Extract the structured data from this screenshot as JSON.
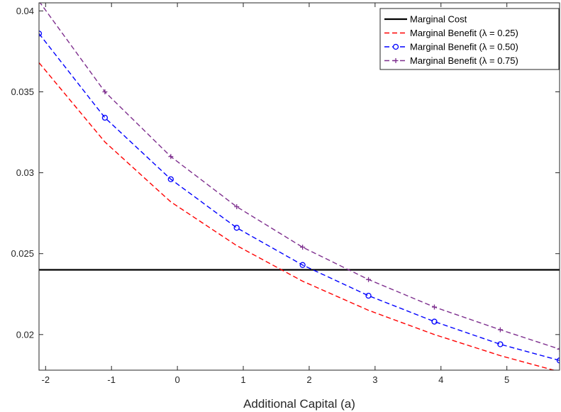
{
  "chart_data": {
    "type": "line",
    "title": "",
    "xlabel": "Additional Capital (a)",
    "ylabel": "",
    "xlim": [
      -2.1,
      5.8
    ],
    "ylim": [
      0.0178,
      0.0405
    ],
    "grid": false,
    "legend_position": "top-right",
    "x_ticks": [
      -2,
      -1,
      0,
      1,
      2,
      3,
      4,
      5
    ],
    "x_tick_labels": [
      "-2",
      "-1",
      "0",
      "1",
      "2",
      "3",
      "4",
      "5"
    ],
    "y_ticks": [
      0.02,
      0.025,
      0.03,
      0.035,
      0.04
    ],
    "y_tick_labels": [
      "0.02",
      "0.025",
      "0.03",
      "0.035",
      "0.04"
    ],
    "series": [
      {
        "name": "Marginal Cost",
        "color": "#000000",
        "style": "solid",
        "marker": "none",
        "x": [
          -2.1,
          5.8
        ],
        "values": [
          0.024,
          0.024
        ]
      },
      {
        "name": "Marginal Benefit (λ = 0.25)",
        "color": "#ff0000",
        "style": "dashed",
        "marker": "none",
        "x": [
          -2.1,
          -1.1,
          -0.1,
          0.9,
          1.9,
          2.9,
          3.9,
          4.9,
          5.8
        ],
        "values": [
          0.0368,
          0.0319,
          0.0282,
          0.0255,
          0.0233,
          0.0215,
          0.02,
          0.0187,
          0.0177
        ]
      },
      {
        "name": "Marginal Benefit (λ = 0.50)",
        "color": "#0000ff",
        "style": "dashed",
        "marker": "circle",
        "x": [
          -2.1,
          -1.1,
          -0.1,
          0.9,
          1.9,
          2.9,
          3.9,
          4.9,
          5.8
        ],
        "values": [
          0.0386,
          0.0334,
          0.0296,
          0.0266,
          0.0243,
          0.0224,
          0.0208,
          0.0194,
          0.0184
        ]
      },
      {
        "name": "Marginal Benefit (λ = 0.75)",
        "color": "#7e2f8e",
        "style": "dashed",
        "marker": "plus",
        "x": [
          -2.1,
          -1.1,
          -0.1,
          0.9,
          1.9,
          2.9,
          3.9,
          4.9,
          5.8
        ],
        "values": [
          0.0406,
          0.035,
          0.031,
          0.0279,
          0.0254,
          0.0234,
          0.0217,
          0.0203,
          0.0191
        ]
      }
    ]
  }
}
